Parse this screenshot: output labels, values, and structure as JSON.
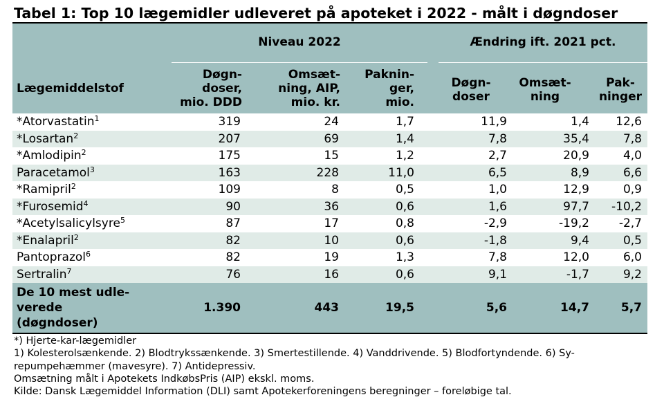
{
  "title": "Tabel 1: Top 10 lægemidler udleveret på apoteket i 2022 - målt i døgndoser",
  "header": {
    "group_2022": "Niveau 2022",
    "group_change": "Ændring ift. 2021 pct.",
    "col_name": "Lægemiddelstof",
    "col_ddd": [
      "Døgn-",
      "doser,",
      "mio. DDD"
    ],
    "col_aip": [
      "Omsæt-",
      "ning, AIP,",
      "mio. kr."
    ],
    "col_pak": [
      "Paknin-",
      "ger,",
      "mio."
    ],
    "col_ch_ddd": [
      "Døgn-",
      "doser"
    ],
    "col_ch_oms": [
      "Omsæt-",
      "ning"
    ],
    "col_ch_pak": [
      "Pak-",
      "ninger"
    ]
  },
  "rows": [
    {
      "name": "*Atorvastatin",
      "note": "1",
      "ddd": "319",
      "aip": "24",
      "pak": "1,7",
      "ch_ddd": "11,9",
      "ch_oms": "1,4",
      "ch_pak": "12,6"
    },
    {
      "name": "*Losartan",
      "note": "2",
      "ddd": "207",
      "aip": "69",
      "pak": "1,4",
      "ch_ddd": "7,8",
      "ch_oms": "35,4",
      "ch_pak": "7,8"
    },
    {
      "name": "*Amlodipin",
      "note": "2",
      "ddd": "175",
      "aip": "15",
      "pak": "1,2",
      "ch_ddd": "2,7",
      "ch_oms": "20,9",
      "ch_pak": "4,0"
    },
    {
      "name": "Paracetamol",
      "note": "3",
      "ddd": "163",
      "aip": "228",
      "pak": "11,0",
      "ch_ddd": "6,5",
      "ch_oms": "8,9",
      "ch_pak": "6,6"
    },
    {
      "name": "*Ramipril",
      "note": "2",
      "ddd": "109",
      "aip": "8",
      "pak": "0,5",
      "ch_ddd": "1,0",
      "ch_oms": "12,9",
      "ch_pak": "0,9"
    },
    {
      "name": "*Furosemid",
      "note": "4",
      "ddd": "90",
      "aip": "36",
      "pak": "0,6",
      "ch_ddd": "1,6",
      "ch_oms": "97,7",
      "ch_pak": "-10,2"
    },
    {
      "name": "*Acetylsalicylsyre",
      "note": "5",
      "ddd": "87",
      "aip": "17",
      "pak": "0,8",
      "ch_ddd": "-2,9",
      "ch_oms": "-19,2",
      "ch_pak": "-2,7"
    },
    {
      "name": "*Enalapril",
      "note": "2",
      "ddd": "82",
      "aip": "10",
      "pak": "0,6",
      "ch_ddd": "-1,8",
      "ch_oms": "9,4",
      "ch_pak": "0,5"
    },
    {
      "name": "Pantoprazol",
      "note": "6",
      "ddd": "82",
      "aip": "19",
      "pak": "1,3",
      "ch_ddd": "7,8",
      "ch_oms": "12,0",
      "ch_pak": "6,0"
    },
    {
      "name": "Sertralin",
      "note": "7",
      "ddd": "76",
      "aip": "16",
      "pak": "0,6",
      "ch_ddd": "9,1",
      "ch_oms": "-1,7",
      "ch_pak": "9,2"
    }
  ],
  "total": {
    "label": [
      "De 10 mest udle-",
      "verede",
      "(døgndoser)"
    ],
    "ddd": "1.390",
    "aip": "443",
    "pak": "19,5",
    "ch_ddd": "5,6",
    "ch_oms": "14,7",
    "ch_pak": "5,7"
  },
  "notes": [
    "*) Hjerte-kar-lægemidler",
    "1) Kolesterolsænkende. 2) Blodtrykssænkende. 3) Smertestillende. 4) Vanddrivende. 5) Blodfortyndende. 6) Sy-",
    "repumpehæmmer (mavesyre). 7) Antidepressiv.",
    "Omsætning målt i Apotekets IndkøbsPris (AIP) ekskl. moms.",
    "Kilde: Dansk Lægemiddel Information (DLI) samt Apotekerforeningens beregninger – foreløbige tal."
  ]
}
